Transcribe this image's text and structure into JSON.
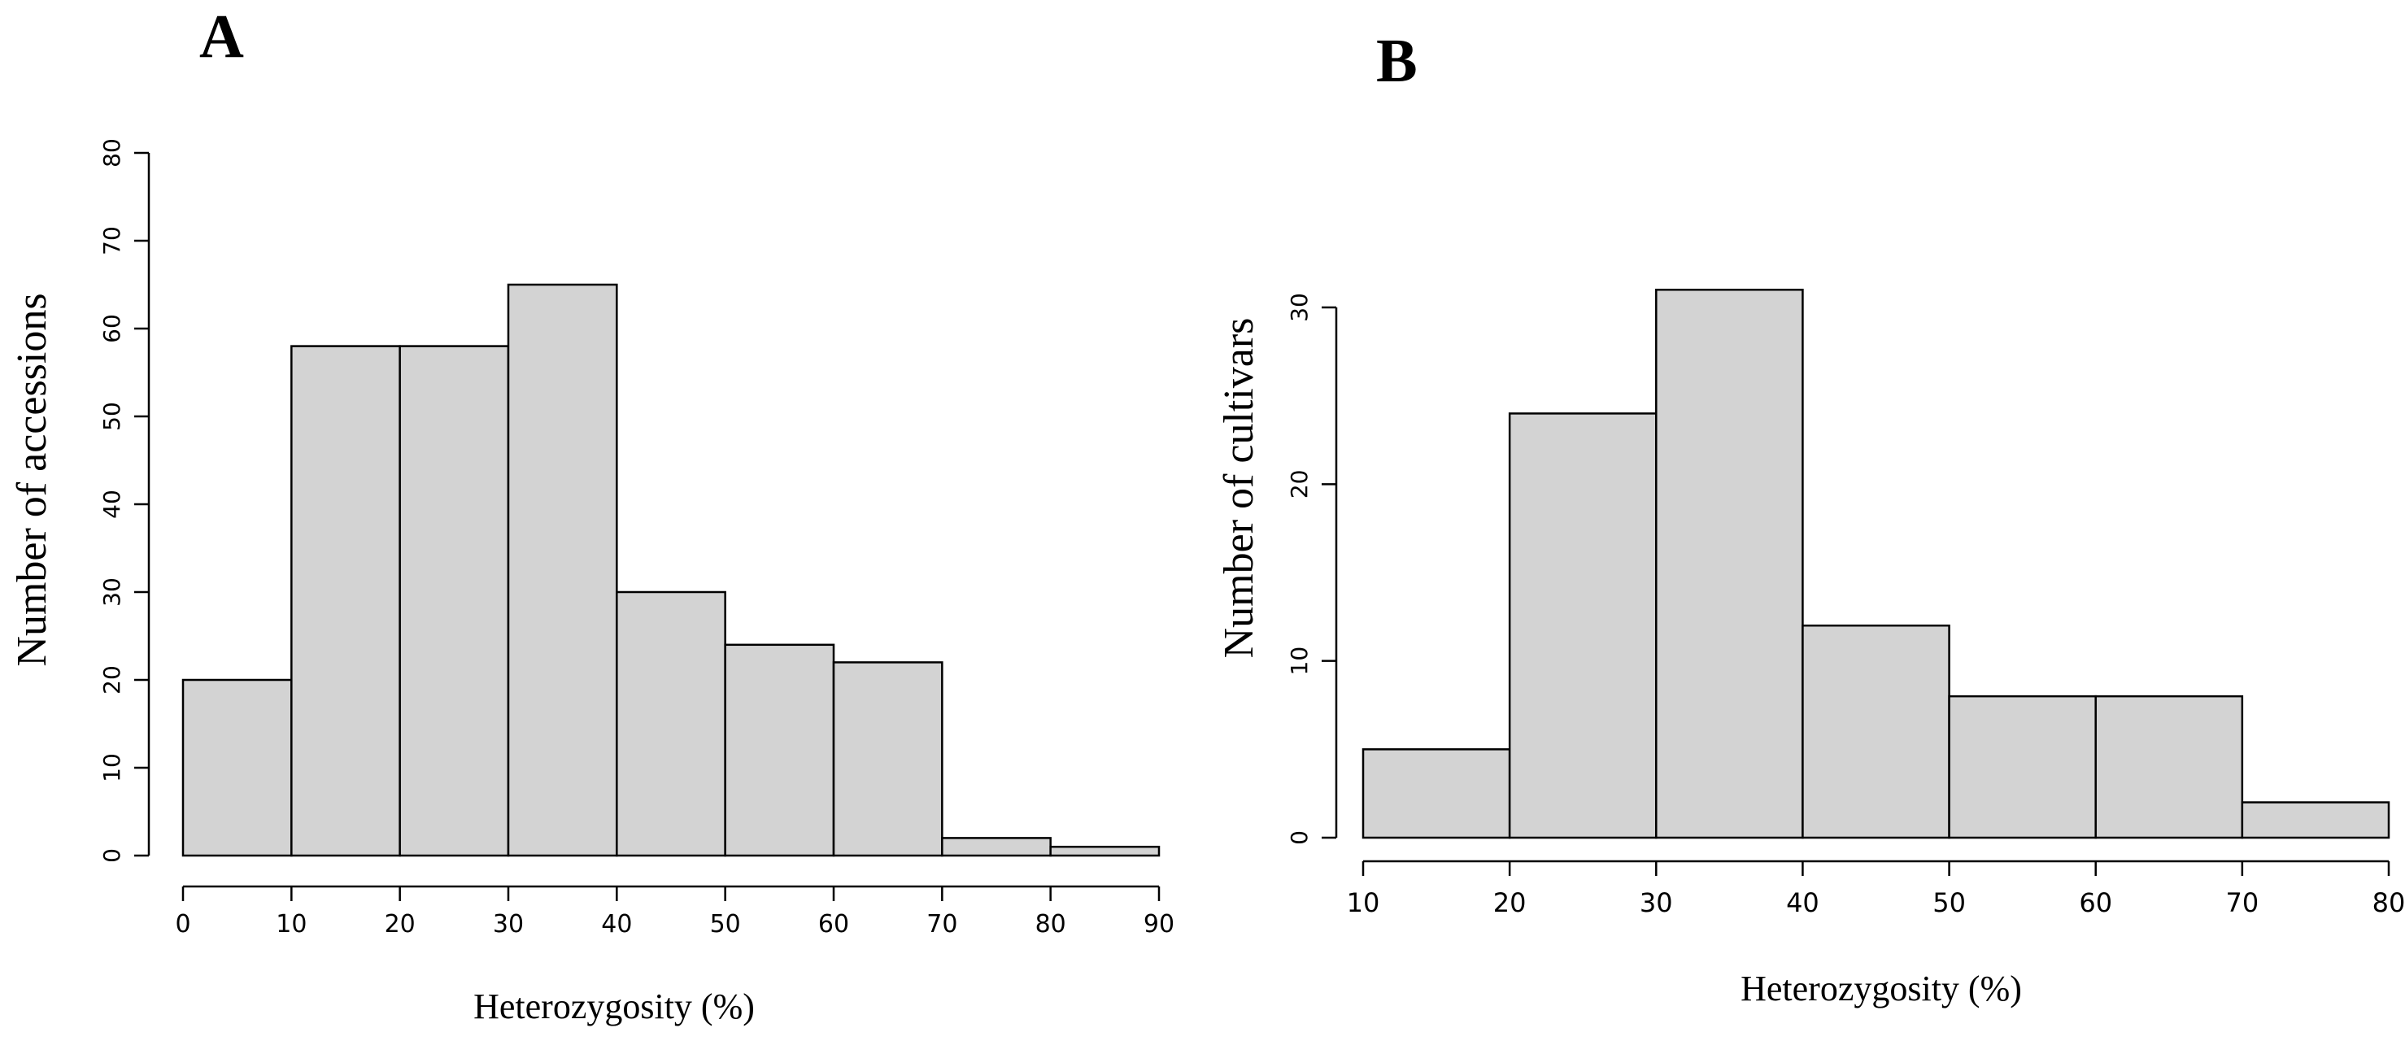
{
  "colors": {
    "bar_fill": "#d3d3d3",
    "bar_stroke": "#000000",
    "background": "#ffffff"
  },
  "chart_data": [
    {
      "panel": "A",
      "type": "bar",
      "bins": [
        [
          0,
          10
        ],
        [
          10,
          20
        ],
        [
          20,
          30
        ],
        [
          30,
          40
        ],
        [
          40,
          50
        ],
        [
          50,
          60
        ],
        [
          60,
          70
        ],
        [
          70,
          80
        ],
        [
          80,
          90
        ]
      ],
      "values": [
        20,
        58,
        58,
        65,
        30,
        24,
        22,
        2,
        1
      ],
      "xlabel": "Heterozygosity  (%)",
      "ylabel": "Number  of accessions",
      "xlim": [
        0,
        90
      ],
      "ylim": [
        0,
        80
      ],
      "xticks": [
        0,
        10,
        20,
        30,
        40,
        50,
        60,
        70,
        80,
        90
      ],
      "yticks": [
        0,
        10,
        20,
        30,
        40,
        50,
        60,
        70,
        80
      ],
      "grid": false,
      "legend": "none"
    },
    {
      "panel": "B",
      "type": "bar",
      "bins": [
        [
          10,
          20
        ],
        [
          20,
          30
        ],
        [
          30,
          40
        ],
        [
          40,
          50
        ],
        [
          50,
          60
        ],
        [
          60,
          70
        ],
        [
          70,
          80
        ]
      ],
      "values": [
        5,
        24,
        31,
        12,
        8,
        8,
        2
      ],
      "xlabel": "Heterozygosity  (%)",
      "ylabel": "Number  of cultivars",
      "xlim": [
        10,
        80
      ],
      "ylim": [
        0,
        30
      ],
      "xticks": [
        10,
        20,
        30,
        40,
        50,
        60,
        70,
        80
      ],
      "yticks": [
        0,
        10,
        20,
        30
      ],
      "grid": false,
      "legend": "none"
    }
  ]
}
